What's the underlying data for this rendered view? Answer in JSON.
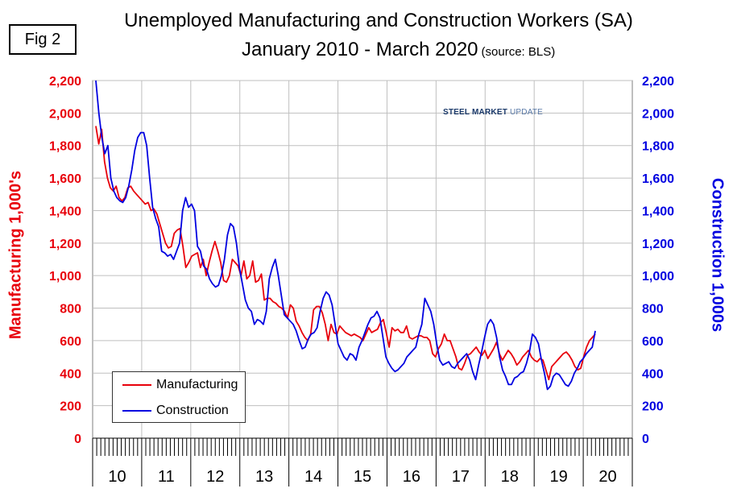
{
  "figure_label": "Fig 2",
  "title_line1": "Unemployed Manufacturing and Construction Workers (SA)",
  "title_line2": "January 2010 - March 2020",
  "source_note": "(source: BLS)",
  "logo_text": "STEEL MARKET",
  "logo_text2": "UPDATE",
  "colors": {
    "manufacturing": "#e8000b",
    "construction": "#0000e0",
    "grid": "#bfbfbf"
  },
  "chart_data": {
    "type": "line",
    "title": "Unemployed Manufacturing and Construction Workers (SA)",
    "subtitle": "January 2010 - March 2020 (source: BLS)",
    "xlabel": "",
    "ylabel_left": "Manufacturing  1,000's",
    "ylabel_right": "Construction 1,000s",
    "ylim_left": [
      0,
      2200
    ],
    "ylim_right": [
      0,
      2200
    ],
    "y_ticks": [
      "0",
      "200",
      "400",
      "600",
      "800",
      "1,000",
      "1,200",
      "1,400",
      "1,600",
      "1,800",
      "2,000",
      "2,200"
    ],
    "x_labels": [
      "10",
      "11",
      "12",
      "13",
      "14",
      "15",
      "16",
      "17",
      "18",
      "19",
      "20"
    ],
    "grid": true,
    "legend": {
      "placement": "bottom-left",
      "entries": [
        "Manufacturing",
        "Construction"
      ]
    },
    "series": [
      {
        "name": "Manufacturing",
        "axis": "left",
        "values": [
          1920,
          1810,
          1900,
          1700,
          1600,
          1540,
          1520,
          1550,
          1480,
          1460,
          1480,
          1540,
          1550,
          1520,
          1500,
          1480,
          1460,
          1440,
          1450,
          1400,
          1410,
          1380,
          1320,
          1260,
          1200,
          1170,
          1180,
          1260,
          1280,
          1290,
          1180,
          1050,
          1080,
          1120,
          1130,
          1140,
          1050,
          1100,
          1000,
          1080,
          1150,
          1210,
          1150,
          1080,
          970,
          960,
          1000,
          1100,
          1080,
          1060,
          1000,
          1090,
          980,
          1000,
          1090,
          960,
          970,
          1010,
          850,
          860,
          860,
          840,
          830,
          810,
          800,
          780,
          740,
          820,
          800,
          720,
          690,
          650,
          620,
          600,
          640,
          790,
          810,
          810,
          770,
          700,
          600,
          700,
          650,
          640,
          690,
          670,
          650,
          640,
          630,
          640,
          630,
          620,
          600,
          640,
          680,
          650,
          660,
          670,
          710,
          730,
          650,
          560,
          680,
          660,
          670,
          650,
          650,
          690,
          620,
          610,
          620,
          630,
          630,
          620,
          620,
          600,
          520,
          500,
          550,
          580,
          640,
          600,
          600,
          550,
          500,
          430,
          420,
          460,
          510,
          520,
          540,
          560,
          530,
          510,
          540,
          490,
          520,
          550,
          590,
          520,
          480,
          510,
          540,
          520,
          490,
          450,
          470,
          500,
          520,
          540,
          500,
          480,
          470,
          490,
          480,
          420,
          360,
          440,
          460,
          480,
          500,
          520,
          530,
          510,
          480,
          440,
          420,
          430,
          500,
          560,
          600,
          620,
          640
        ]
      },
      {
        "name": "Construction",
        "axis": "right",
        "values": [
          2220,
          2000,
          1850,
          1750,
          1800,
          1600,
          1520,
          1480,
          1460,
          1450,
          1480,
          1550,
          1650,
          1770,
          1850,
          1880,
          1880,
          1800,
          1600,
          1420,
          1350,
          1300,
          1150,
          1140,
          1120,
          1130,
          1100,
          1150,
          1200,
          1400,
          1480,
          1420,
          1440,
          1400,
          1180,
          1150,
          1060,
          1040,
          980,
          950,
          930,
          940,
          1000,
          1100,
          1250,
          1320,
          1300,
          1200,
          1050,
          950,
          850,
          800,
          780,
          700,
          730,
          720,
          700,
          780,
          980,
          1050,
          1100,
          1000,
          880,
          760,
          740,
          720,
          700,
          660,
          600,
          550,
          560,
          610,
          640,
          650,
          680,
          780,
          860,
          900,
          880,
          820,
          700,
          580,
          540,
          500,
          480,
          520,
          510,
          480,
          560,
          600,
          650,
          700,
          740,
          750,
          780,
          740,
          620,
          500,
          460,
          430,
          410,
          420,
          440,
          460,
          500,
          520,
          540,
          560,
          640,
          700,
          860,
          820,
          780,
          700,
          580,
          480,
          450,
          460,
          470,
          440,
          430,
          460,
          480,
          500,
          520,
          480,
          410,
          360,
          450,
          530,
          620,
          700,
          730,
          700,
          620,
          500,
          420,
          380,
          330,
          330,
          370,
          380,
          400,
          410,
          460,
          530,
          640,
          620,
          580,
          480,
          400,
          300,
          320,
          380,
          400,
          390,
          360,
          330,
          320,
          350,
          400,
          430,
          470,
          490,
          520,
          540,
          560,
          660
        ]
      }
    ]
  }
}
